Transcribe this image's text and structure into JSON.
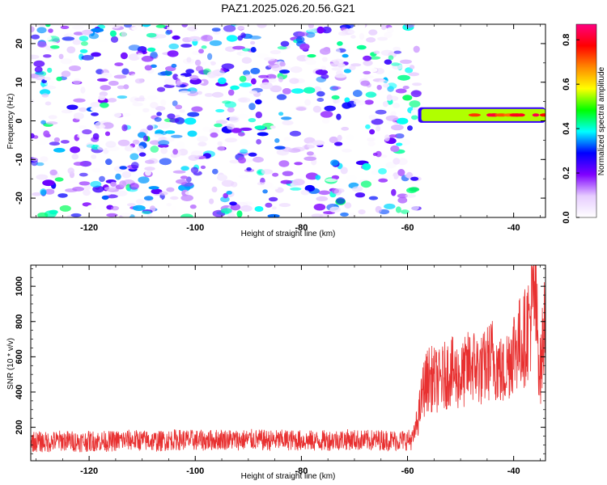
{
  "chart_data": [
    {
      "type": "heatmap",
      "title": "PAZ1.2025.026.20.56.G21",
      "xlabel": "Height of straight line (km)",
      "ylabel": "Frequency (Hz)",
      "xlim": [
        -131,
        -34
      ],
      "ylim": [
        -25,
        25
      ],
      "x_ticks": [
        -120,
        -100,
        -80,
        -60,
        -40
      ],
      "y_ticks": [
        -20,
        -10,
        0,
        10,
        20
      ],
      "noise_region": {
        "x_range": [
          -131,
          -58
        ],
        "freq_range": [
          -25,
          25
        ],
        "amplitude_range": [
          0.0,
          0.45
        ]
      },
      "signal_band": {
        "x_range": [
          -58,
          -34
        ],
        "center_freq_hz": 1.5,
        "half_width_hz": 2,
        "peak_amplitude": 0.85,
        "core_amplitude": 0.5
      },
      "colorbar": {
        "label": "Normalized spectral amplitude",
        "range": [
          0.0,
          0.87
        ],
        "ticks": [
          0.0,
          0.2,
          0.4,
          0.6,
          0.8
        ],
        "colors": [
          "#ffffff",
          "#e6ccff",
          "#7f00ff",
          "#0000ff",
          "#00ffff",
          "#00ff00",
          "#ffff00",
          "#ff8800",
          "#ff0000",
          "#ff0080"
        ]
      },
      "grid": false
    },
    {
      "type": "line",
      "xlabel": "Height of straight line (km)",
      "ylabel": "SNR (10 * v/v)",
      "xlim": [
        -131,
        -34
      ],
      "ylim": [
        10,
        1120
      ],
      "x_ticks": [
        -120,
        -100,
        -80,
        -60,
        -40
      ],
      "y_ticks": [
        200,
        400,
        600,
        800,
        1000
      ],
      "series_color": "#e83030",
      "series": [
        {
          "x": [
            -131,
            -128,
            -125,
            -122,
            -119,
            -116,
            -113,
            -110,
            -107,
            -104,
            -101,
            -98,
            -95,
            -92,
            -89,
            -86,
            -83,
            -80,
            -77,
            -74,
            -71,
            -68,
            -65,
            -62,
            -59,
            -58,
            -57,
            -56,
            -54,
            -52,
            -50,
            -48,
            -46,
            -44,
            -42,
            -40,
            -38,
            -37,
            -36,
            -35,
            -34
          ],
          "y": [
            120,
            115,
            125,
            118,
            122,
            120,
            128,
            125,
            120,
            130,
            128,
            125,
            132,
            128,
            130,
            125,
            128,
            125,
            122,
            128,
            130,
            125,
            128,
            125,
            130,
            250,
            420,
            480,
            460,
            520,
            480,
            560,
            520,
            600,
            500,
            650,
            700,
            800,
            950,
            500,
            850
          ]
        }
      ],
      "grid": false
    }
  ]
}
